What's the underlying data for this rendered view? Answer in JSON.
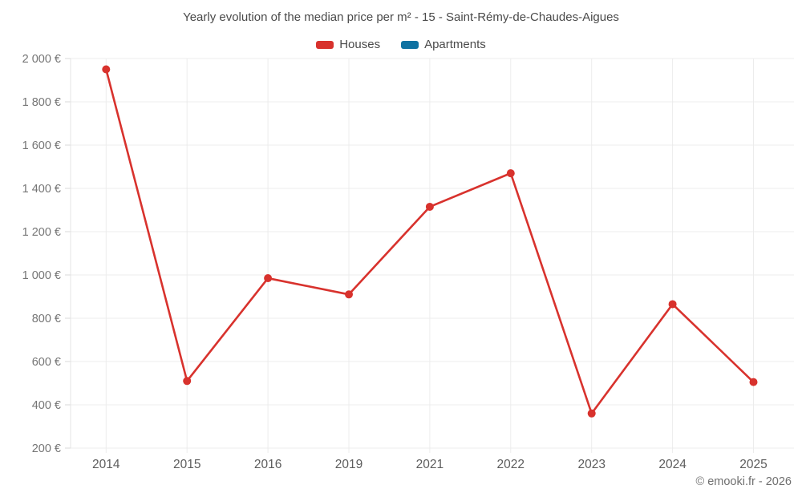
{
  "chart_data": {
    "type": "line",
    "title": "Yearly evolution of the median price per m² - 15 - Saint-Rémy-de-Chaudes-Aigues",
    "categories": [
      "2014",
      "2015",
      "2016",
      "2019",
      "2021",
      "2022",
      "2023",
      "2024",
      "2025"
    ],
    "series": [
      {
        "name": "Houses",
        "color": "#d8322d",
        "values": [
          1950,
          510,
          985,
          910,
          1315,
          1470,
          360,
          865,
          505
        ]
      },
      {
        "name": "Apartments",
        "color": "#0f72a2",
        "values": [
          null,
          null,
          null,
          null,
          null,
          null,
          null,
          null,
          null
        ]
      }
    ],
    "xlabel": "",
    "ylabel": "",
    "ylim": [
      200,
      2000
    ],
    "ytick_values": [
      200,
      400,
      600,
      800,
      1000,
      1200,
      1400,
      1600,
      1800,
      2000
    ],
    "ytick_labels": [
      "200 €",
      "400 €",
      "600 €",
      "800 €",
      "1 000 €",
      "1 200 €",
      "1 400 €",
      "1 600 €",
      "1 800 €",
      "2 000 €"
    ],
    "grid": true,
    "legend_position": "top",
    "marker": "circle",
    "footer": "© emooki.fr - 2026",
    "colors": {
      "gridline": "#ececec",
      "axis_line": "#e4e4e4",
      "tick": "#d8d8d8",
      "y_label_text": "#757575",
      "x_label_text": "#5d5d5d",
      "title_text": "#4a4a4a"
    }
  }
}
